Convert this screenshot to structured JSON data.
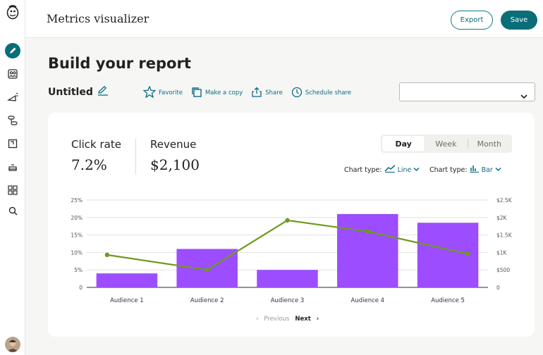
{
  "app": {
    "title": "Metrics visualizer"
  },
  "topbar": {
    "export_label": "Export",
    "save_label": "Save"
  },
  "sidebar": {
    "items": [
      {
        "icon": "pencil-icon",
        "active": true
      },
      {
        "icon": "audience-icon"
      },
      {
        "icon": "campaign-icon"
      },
      {
        "icon": "automation-icon"
      },
      {
        "icon": "content-icon"
      },
      {
        "icon": "analytics-icon"
      },
      {
        "icon": "integrations-icon"
      },
      {
        "icon": "search-icon"
      }
    ]
  },
  "page": {
    "heading": "Build your report",
    "report_name": "Untitled",
    "actions": [
      {
        "label": "Favorite",
        "icon": "star-icon"
      },
      {
        "label": "Make a copy",
        "icon": "copy-icon"
      },
      {
        "label": "Share",
        "icon": "share-icon"
      },
      {
        "label": "Schedule share",
        "icon": "clock-icon"
      }
    ],
    "dropdown": {
      "value": ""
    }
  },
  "card": {
    "metrics": [
      {
        "label": "Click rate",
        "value": "7.2%"
      },
      {
        "label": "Revenue",
        "value": "$2,100"
      }
    ],
    "period_tabs": [
      {
        "label": "Day",
        "active": true
      },
      {
        "label": "Week"
      },
      {
        "label": "Month"
      }
    ],
    "chart_type_line": {
      "label": "Chart type:",
      "value": "Line"
    },
    "chart_type_bar": {
      "label": "Chart type:",
      "value": "Bar"
    },
    "pager": {
      "prev": "Previous",
      "next": "Next"
    }
  },
  "colors": {
    "accent": "#0a6d78",
    "bar": "#9b4dff",
    "line": "#6f9a1c"
  },
  "chart_data": {
    "type": "bar",
    "categories": [
      "Audience 1",
      "Audience 2",
      "Audience 3",
      "Audience 4",
      "Audience 5"
    ],
    "series": [
      {
        "type": "bar",
        "axis": "right",
        "values": [
          400,
          1100,
          500,
          2100,
          1850
        ]
      },
      {
        "type": "line",
        "axis": "left",
        "values": [
          9.3,
          5,
          19.2,
          16,
          9.6
        ]
      }
    ],
    "y_left": {
      "ticks": [
        "0",
        "5%",
        "10%",
        "15%",
        "20%",
        "25%"
      ],
      "range": [
        0,
        25
      ]
    },
    "y_right": {
      "ticks": [
        "0",
        "$500",
        "$1K",
        "$1.5K",
        "$2K",
        "$2.5K"
      ],
      "range": [
        0,
        2500
      ]
    },
    "grid": true
  }
}
